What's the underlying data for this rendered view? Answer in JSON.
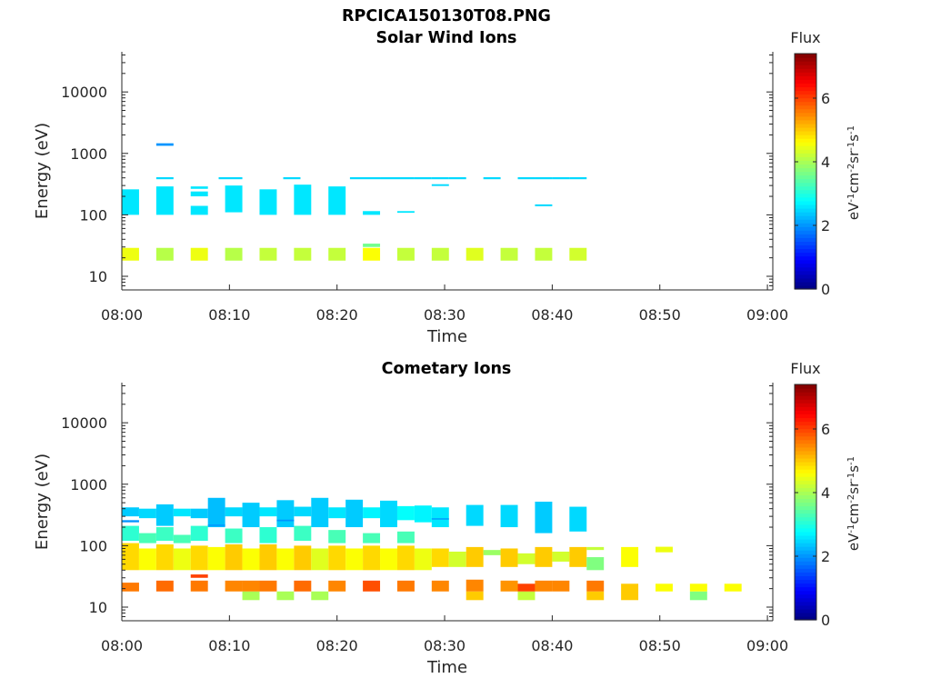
{
  "figure": {
    "title": "RPCICA150130T08.PNG"
  },
  "chart_data": [
    {
      "type": "heatmap",
      "title": "Solar Wind Ions",
      "xlabel": "Time",
      "ylabel": "Energy (eV)",
      "x_ticks": [
        "08:00",
        "08:10",
        "08:20",
        "08:30",
        "08:40",
        "08:50",
        "09:00"
      ],
      "x_range_minutes": [
        0,
        60.5
      ],
      "y_scale": "log",
      "y_range": [
        6,
        45000
      ],
      "y_ticks": [
        10,
        100,
        1000,
        10000
      ],
      "y_tick_labels": [
        "10",
        "100",
        "1000",
        "10000"
      ],
      "colorbar": {
        "title": "Flux",
        "label": "eV-1cm-2sr-1s-1",
        "ticks": [
          0,
          2,
          4,
          6
        ],
        "range": [
          0,
          7.4
        ]
      },
      "cells": [
        [
          0,
          1.6,
          100,
          260,
          2.6
        ],
        [
          3.2,
          4.8,
          100,
          290,
          2.6
        ],
        [
          6.4,
          8,
          100,
          140,
          2.6
        ],
        [
          9.6,
          11.2,
          110,
          300,
          2.6
        ],
        [
          12.8,
          14.4,
          100,
          260,
          2.6
        ],
        [
          16,
          17.6,
          100,
          310,
          2.6
        ],
        [
          19.2,
          20.8,
          100,
          290,
          2.6
        ],
        [
          22.4,
          24,
          100,
          115,
          2.6
        ],
        [
          25.6,
          27.2,
          108,
          115,
          2.6
        ],
        [
          6.4,
          8,
          200,
          240,
          2.6
        ],
        [
          6.4,
          8,
          265,
          290,
          2.6
        ],
        [
          3.2,
          4.8,
          380,
          410,
          2.5
        ],
        [
          9,
          11.2,
          380,
          410,
          2.5
        ],
        [
          15,
          16.6,
          380,
          410,
          2.5
        ],
        [
          21.2,
          24,
          380,
          410,
          2.5
        ],
        [
          24,
          27.2,
          380,
          410,
          2.5
        ],
        [
          27.2,
          28.8,
          380,
          410,
          2.5
        ],
        [
          28.8,
          30.4,
          380,
          410,
          2.5
        ],
        [
          30.4,
          32,
          380,
          410,
          2.5
        ],
        [
          33.6,
          35.2,
          380,
          410,
          2.5
        ],
        [
          36.8,
          38.4,
          380,
          410,
          2.5
        ],
        [
          38.4,
          40,
          380,
          410,
          2.5
        ],
        [
          40,
          41.6,
          380,
          410,
          2.5
        ],
        [
          41.6,
          43.2,
          380,
          410,
          2.5
        ],
        [
          28.8,
          30.4,
          295,
          315,
          2.5
        ],
        [
          38.4,
          40,
          138,
          148,
          2.5
        ],
        [
          3.2,
          4.8,
          1330,
          1460,
          2.0
        ],
        [
          0,
          1.6,
          18,
          29,
          4.5
        ],
        [
          3.2,
          4.8,
          18,
          29,
          4.1
        ],
        [
          6.4,
          8,
          18,
          29,
          4.5
        ],
        [
          9.6,
          11.2,
          18,
          29,
          4.1
        ],
        [
          12.8,
          14.4,
          18,
          29,
          4.2
        ],
        [
          16,
          17.6,
          18,
          29,
          4.2
        ],
        [
          19.2,
          20.8,
          18,
          29,
          4.2
        ],
        [
          22.4,
          24,
          18,
          29,
          4.6
        ],
        [
          22.4,
          24,
          30,
          34,
          3.6
        ],
        [
          25.6,
          27.2,
          18,
          29,
          4.2
        ],
        [
          28.8,
          30.4,
          18,
          29,
          4.2
        ],
        [
          32,
          33.6,
          18,
          29,
          4.4
        ],
        [
          35.2,
          36.8,
          18,
          29,
          4.2
        ],
        [
          38.4,
          40,
          18,
          29,
          4.2
        ],
        [
          41.6,
          43.2,
          18,
          29,
          4.3
        ]
      ]
    },
    {
      "type": "heatmap",
      "title": "Cometary Ions",
      "xlabel": "Time",
      "ylabel": "Energy (eV)",
      "x_ticks": [
        "08:00",
        "08:10",
        "08:20",
        "08:30",
        "08:40",
        "08:50",
        "09:00"
      ],
      "x_range_minutes": [
        0,
        60.5
      ],
      "y_scale": "log",
      "y_range": [
        6,
        45000
      ],
      "y_ticks": [
        10,
        100,
        1000,
        10000
      ],
      "y_tick_labels": [
        "10",
        "100",
        "1000",
        "10000"
      ],
      "colorbar": {
        "title": "Flux",
        "label": "eV-1cm-2sr-1s-1",
        "ticks": [
          0,
          2,
          4,
          6
        ],
        "range": [
          0,
          7.4
        ]
      },
      "cells": [
        [
          0,
          1.6,
          40,
          110,
          4.9
        ],
        [
          1.6,
          3.2,
          40,
          90,
          4.6
        ],
        [
          3.2,
          4.8,
          40,
          105,
          4.9
        ],
        [
          4.8,
          6.4,
          40,
          90,
          4.5
        ],
        [
          6.4,
          8,
          40,
          100,
          4.9
        ],
        [
          8,
          9.6,
          40,
          95,
          4.6
        ],
        [
          9.6,
          11.2,
          40,
          105,
          5.0
        ],
        [
          11.2,
          12.8,
          40,
          90,
          4.6
        ],
        [
          12.8,
          14.4,
          40,
          105,
          5.0
        ],
        [
          14.4,
          16,
          40,
          90,
          4.6
        ],
        [
          16,
          17.6,
          40,
          100,
          5.0
        ],
        [
          17.6,
          19.2,
          40,
          90,
          4.4
        ],
        [
          19.2,
          20.8,
          40,
          100,
          4.9
        ],
        [
          20.8,
          22.4,
          40,
          90,
          4.6
        ],
        [
          22.4,
          24,
          40,
          100,
          4.9
        ],
        [
          24,
          25.6,
          40,
          90,
          4.6
        ],
        [
          25.6,
          27.2,
          40,
          100,
          4.9
        ],
        [
          27.2,
          28.8,
          40,
          90,
          4.5
        ],
        [
          28.8,
          30.4,
          45,
          90,
          4.9
        ],
        [
          30.4,
          32,
          45,
          80,
          4.3
        ],
        [
          32,
          33.6,
          45,
          95,
          5.0
        ],
        [
          33.6,
          35.2,
          70,
          85,
          3.9
        ],
        [
          35.2,
          36.8,
          45,
          90,
          5.0
        ],
        [
          36.8,
          38.4,
          50,
          75,
          4.3
        ],
        [
          38.4,
          40,
          45,
          95,
          5.0
        ],
        [
          40,
          41.6,
          55,
          80,
          4.3
        ],
        [
          41.6,
          43.2,
          45,
          95,
          5.0
        ],
        [
          43.2,
          44.8,
          85,
          95,
          4.2
        ],
        [
          43.2,
          44.8,
          40,
          65,
          3.7
        ],
        [
          46.4,
          48,
          45,
          95,
          4.6
        ],
        [
          49.6,
          51.2,
          78,
          96,
          4.5
        ],
        [
          0,
          1.6,
          120,
          210,
          3.1
        ],
        [
          1.6,
          3.2,
          110,
          160,
          3.3
        ],
        [
          3.2,
          4.8,
          120,
          200,
          3.2
        ],
        [
          4.8,
          6.4,
          110,
          150,
          3.3
        ],
        [
          6.4,
          8,
          120,
          210,
          3.1
        ],
        [
          9.6,
          11.2,
          110,
          190,
          3.2
        ],
        [
          12.8,
          14.4,
          110,
          200,
          3.1
        ],
        [
          16,
          17.6,
          120,
          210,
          3.2
        ],
        [
          19.2,
          20.8,
          110,
          180,
          3.3
        ],
        [
          22.4,
          24,
          110,
          160,
          3.3
        ],
        [
          25.6,
          27.2,
          110,
          170,
          3.3
        ],
        [
          0,
          1.6,
          300,
          420,
          2.4
        ],
        [
          1.6,
          3.2,
          280,
          400,
          2.5
        ],
        [
          3.2,
          4.8,
          210,
          470,
          2.4
        ],
        [
          4.8,
          6.4,
          300,
          400,
          2.6
        ],
        [
          6.4,
          8,
          280,
          400,
          2.4
        ],
        [
          8,
          9.6,
          200,
          600,
          2.3
        ],
        [
          9.6,
          11.2,
          300,
          420,
          2.5
        ],
        [
          11.2,
          12.8,
          200,
          500,
          2.4
        ],
        [
          12.8,
          14.4,
          300,
          420,
          2.6
        ],
        [
          14.4,
          16,
          200,
          550,
          2.4
        ],
        [
          16,
          17.6,
          300,
          430,
          2.5
        ],
        [
          17.6,
          19.2,
          200,
          600,
          2.4
        ],
        [
          19.2,
          20.8,
          280,
          420,
          2.6
        ],
        [
          20.8,
          22.4,
          200,
          560,
          2.4
        ],
        [
          22.4,
          24,
          280,
          420,
          2.7
        ],
        [
          24,
          25.6,
          200,
          540,
          2.5
        ],
        [
          25.6,
          27.2,
          260,
          440,
          2.8
        ],
        [
          27.2,
          28.8,
          240,
          450,
          2.7
        ],
        [
          28.8,
          30.4,
          200,
          420,
          2.6
        ],
        [
          32,
          33.6,
          210,
          460,
          2.5
        ],
        [
          35.2,
          36.8,
          200,
          460,
          2.5
        ],
        [
          38.4,
          40,
          160,
          520,
          2.4
        ],
        [
          41.6,
          43.2,
          170,
          430,
          2.5
        ],
        [
          0,
          1.6,
          240,
          260,
          2.0
        ],
        [
          8,
          9.6,
          210,
          220,
          2.0
        ],
        [
          14.4,
          16,
          250,
          265,
          2.0
        ],
        [
          28.8,
          30.4,
          265,
          280,
          2.1
        ],
        [
          0,
          1.6,
          18,
          25,
          5.6
        ],
        [
          3.2,
          4.8,
          18,
          27,
          5.7
        ],
        [
          6.4,
          8,
          18,
          27,
          5.6
        ],
        [
          6.4,
          8,
          30,
          34,
          6.0
        ],
        [
          9.6,
          11.2,
          18,
          27,
          5.5
        ],
        [
          11.2,
          12.8,
          13,
          18,
          4.0
        ],
        [
          11.2,
          12.8,
          18,
          27,
          5.5
        ],
        [
          12.8,
          14.4,
          18,
          27,
          5.6
        ],
        [
          14.4,
          16,
          13,
          18,
          4.0
        ],
        [
          16,
          17.6,
          18,
          27,
          5.7
        ],
        [
          17.6,
          19.2,
          13,
          18,
          4.0
        ],
        [
          19.2,
          20.8,
          18,
          27,
          5.5
        ],
        [
          22.4,
          24,
          18,
          27,
          5.9
        ],
        [
          25.6,
          27.2,
          18,
          27,
          5.6
        ],
        [
          28.8,
          30.4,
          18,
          27,
          5.5
        ],
        [
          32,
          33.6,
          13,
          18,
          5.0
        ],
        [
          32,
          33.6,
          18,
          28,
          5.5
        ],
        [
          35.2,
          36.8,
          18,
          27,
          5.4
        ],
        [
          36.8,
          38.4,
          13,
          18,
          4.2
        ],
        [
          36.8,
          38.4,
          18,
          24,
          6.0
        ],
        [
          38.4,
          40,
          18,
          27,
          5.5
        ],
        [
          40,
          41.6,
          18,
          27,
          5.5
        ],
        [
          43.2,
          44.8,
          13,
          18,
          5.0
        ],
        [
          43.2,
          44.8,
          18,
          27,
          5.6
        ],
        [
          46.4,
          48,
          13,
          24,
          5.0
        ],
        [
          49.6,
          51.2,
          18,
          24,
          4.6
        ],
        [
          52.8,
          54.4,
          13,
          18,
          3.7
        ],
        [
          52.8,
          54.4,
          18,
          24,
          4.6
        ],
        [
          56,
          57.6,
          18,
          24,
          4.6
        ]
      ]
    }
  ]
}
